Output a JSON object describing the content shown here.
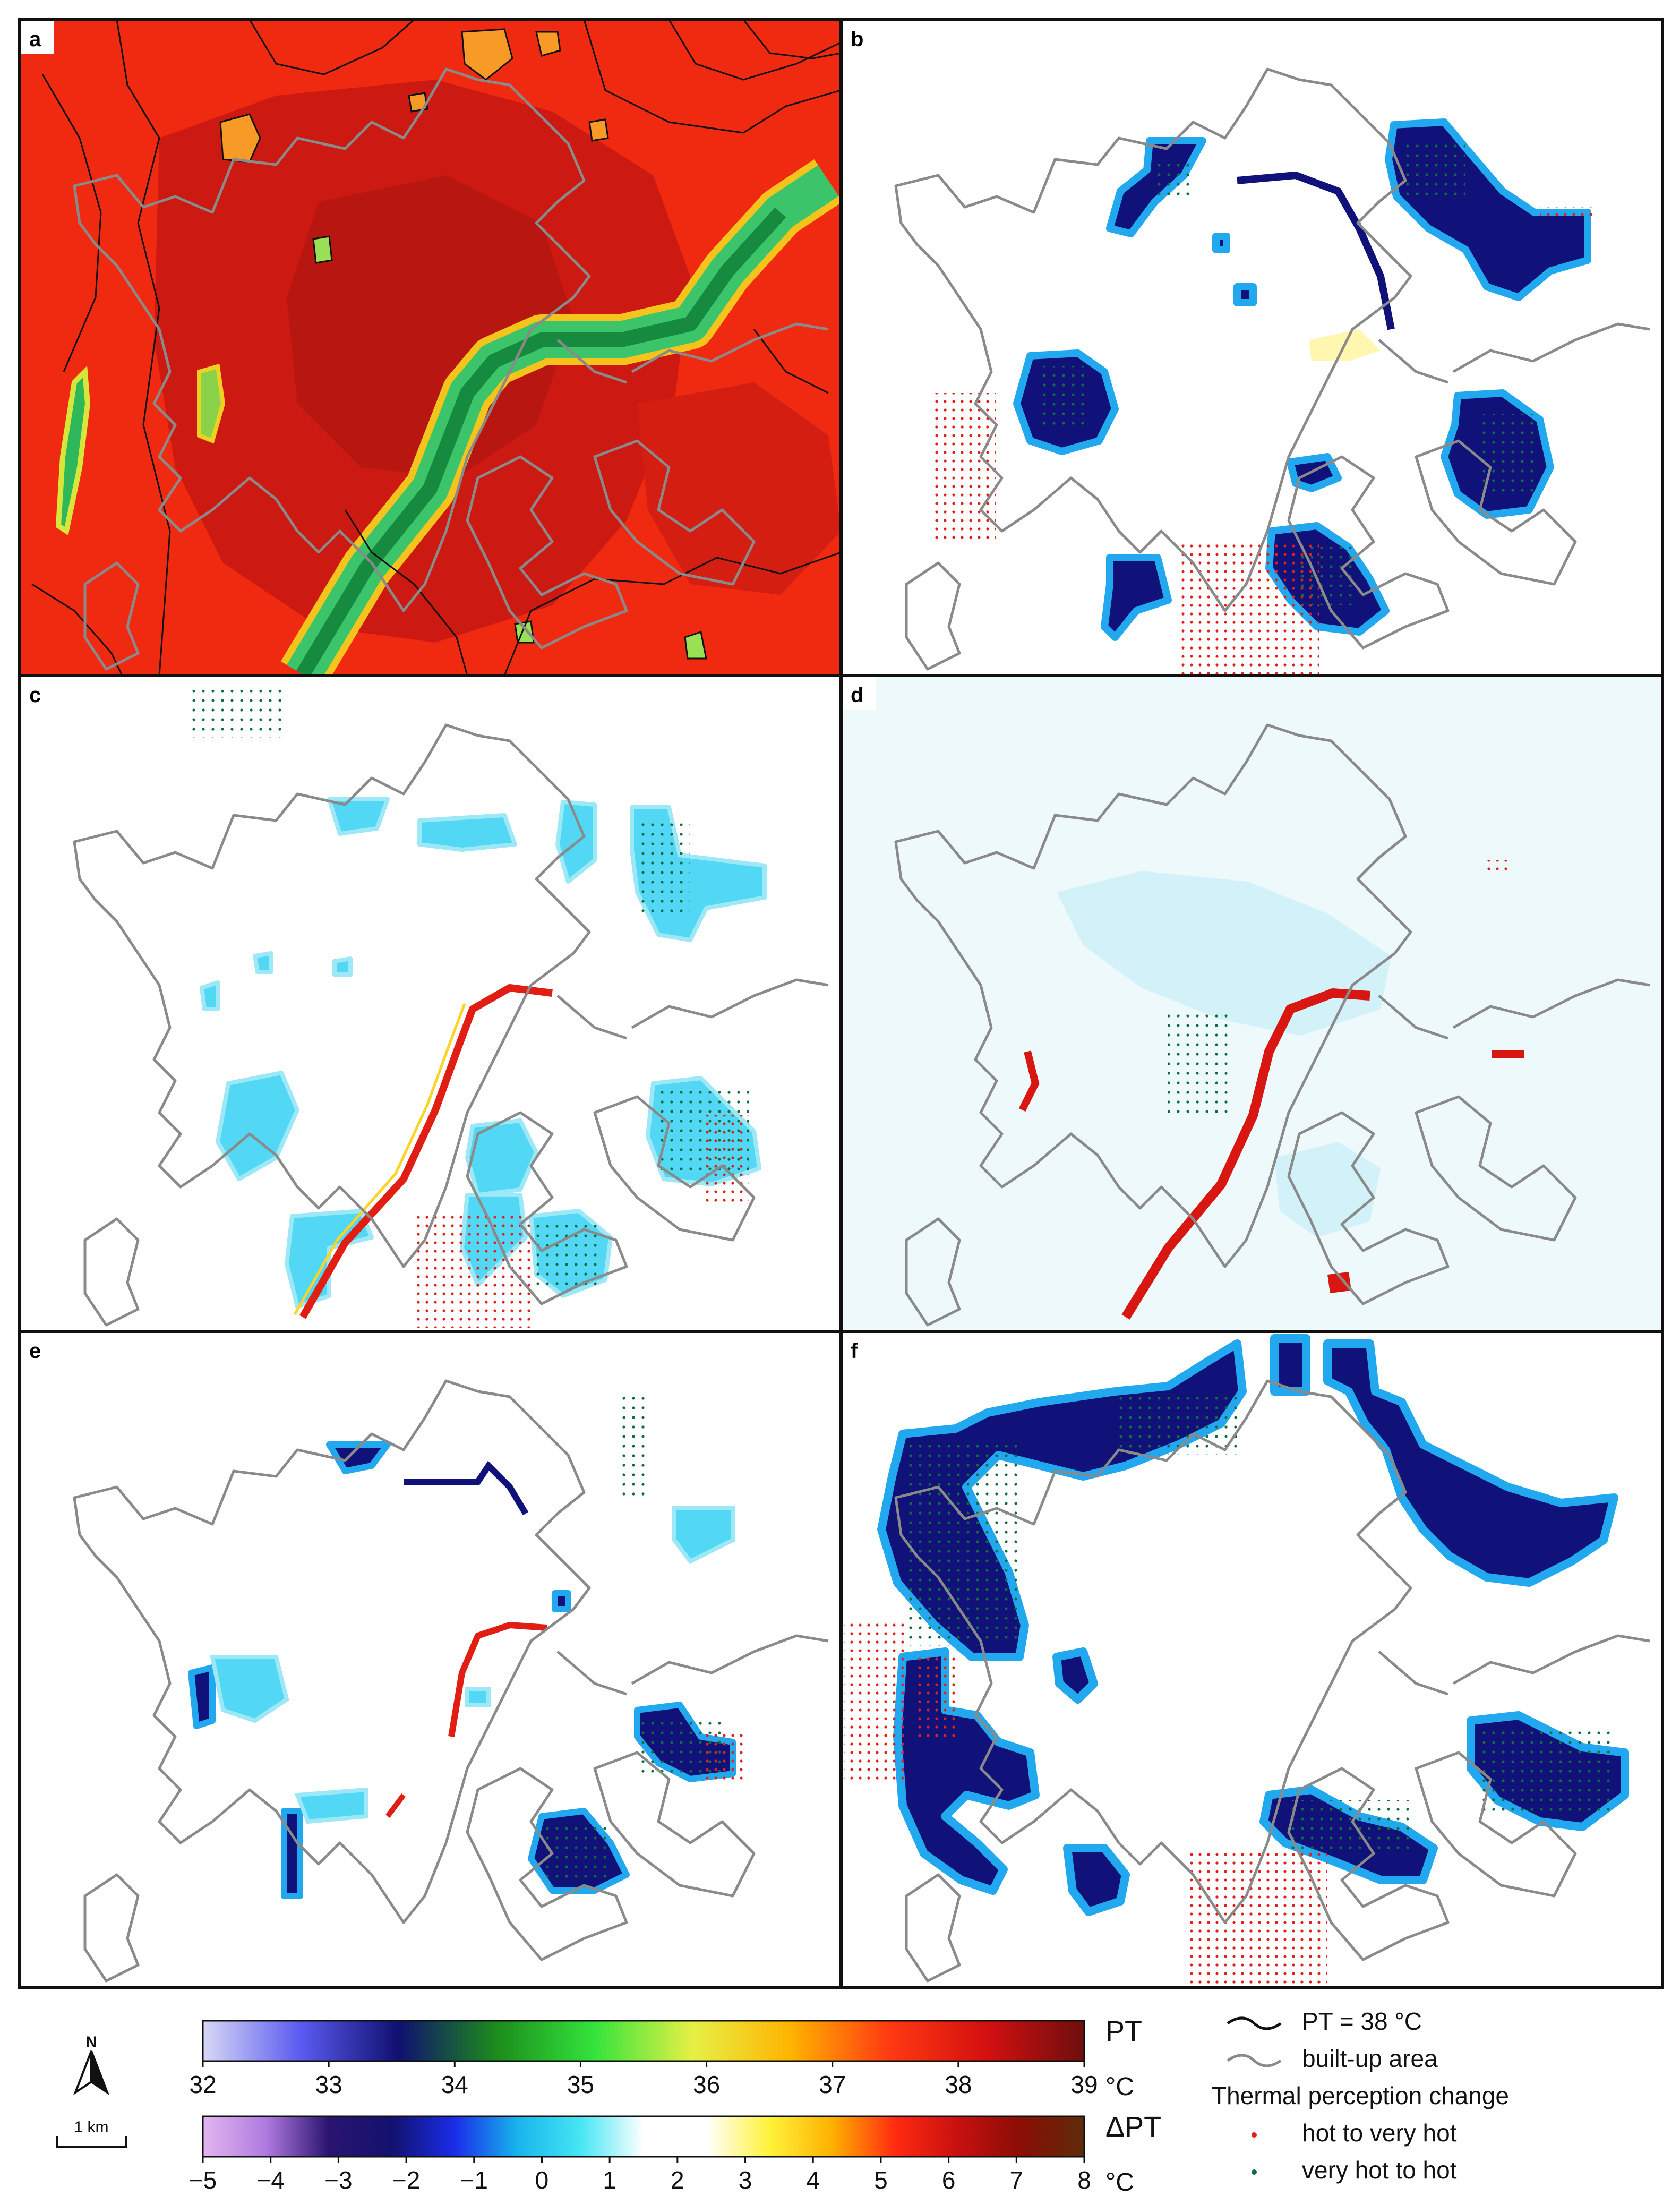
{
  "panels": [
    {
      "letter": "a",
      "variant": "pt"
    },
    {
      "letter": "b",
      "variant": "change"
    },
    {
      "letter": "c",
      "variant": "change"
    },
    {
      "letter": "d",
      "variant": "change"
    },
    {
      "letter": "e",
      "variant": "change"
    },
    {
      "letter": "f",
      "variant": "change"
    }
  ],
  "colorbars": {
    "pt": {
      "label": "PT",
      "unit": "°C",
      "ticks": [
        "32",
        "33",
        "34",
        "35",
        "36",
        "37",
        "38",
        "39"
      ],
      "min": 32,
      "max": 39,
      "colors": [
        "#d8d8f6",
        "#5a5af0",
        "#101070",
        "#1c8c1c",
        "#34e43c",
        "#e6f046",
        "#ffb400",
        "#ff3a12",
        "#d41010",
        "#6e0e0e"
      ]
    },
    "dpt": {
      "label": "ΔPT",
      "unit": "°C",
      "ticks": [
        "−5",
        "−4",
        "−3",
        "−2",
        "−1",
        "0",
        "1",
        "2",
        "3",
        "4",
        "5",
        "6",
        "7",
        "8"
      ],
      "min": -5,
      "max": 8,
      "colors": [
        "#e2b6ee",
        "#b07ae0",
        "#2a1470",
        "#12126e",
        "#1a2ce8",
        "#18b4ec",
        "#46e6f4",
        "#ffffff",
        "#ffffff",
        "#fff23a",
        "#ffb000",
        "#ff2a10",
        "#c81010",
        "#8a0e06",
        "#5e2c0a"
      ]
    }
  },
  "legend": {
    "contour_label": "PT = 38 °C",
    "builtup_label": "built-up area",
    "change_title": "Thermal perception change",
    "hot_label": "hot to very hot",
    "cool_label": "very hot to hot",
    "hot_color": "#e0201a",
    "cool_color": "#0e6e3e",
    "contour_color": "#111111",
    "builtup_color": "#8a8a8a"
  },
  "north": {
    "letter": "N"
  },
  "scalebar": {
    "label": "1 km"
  }
}
